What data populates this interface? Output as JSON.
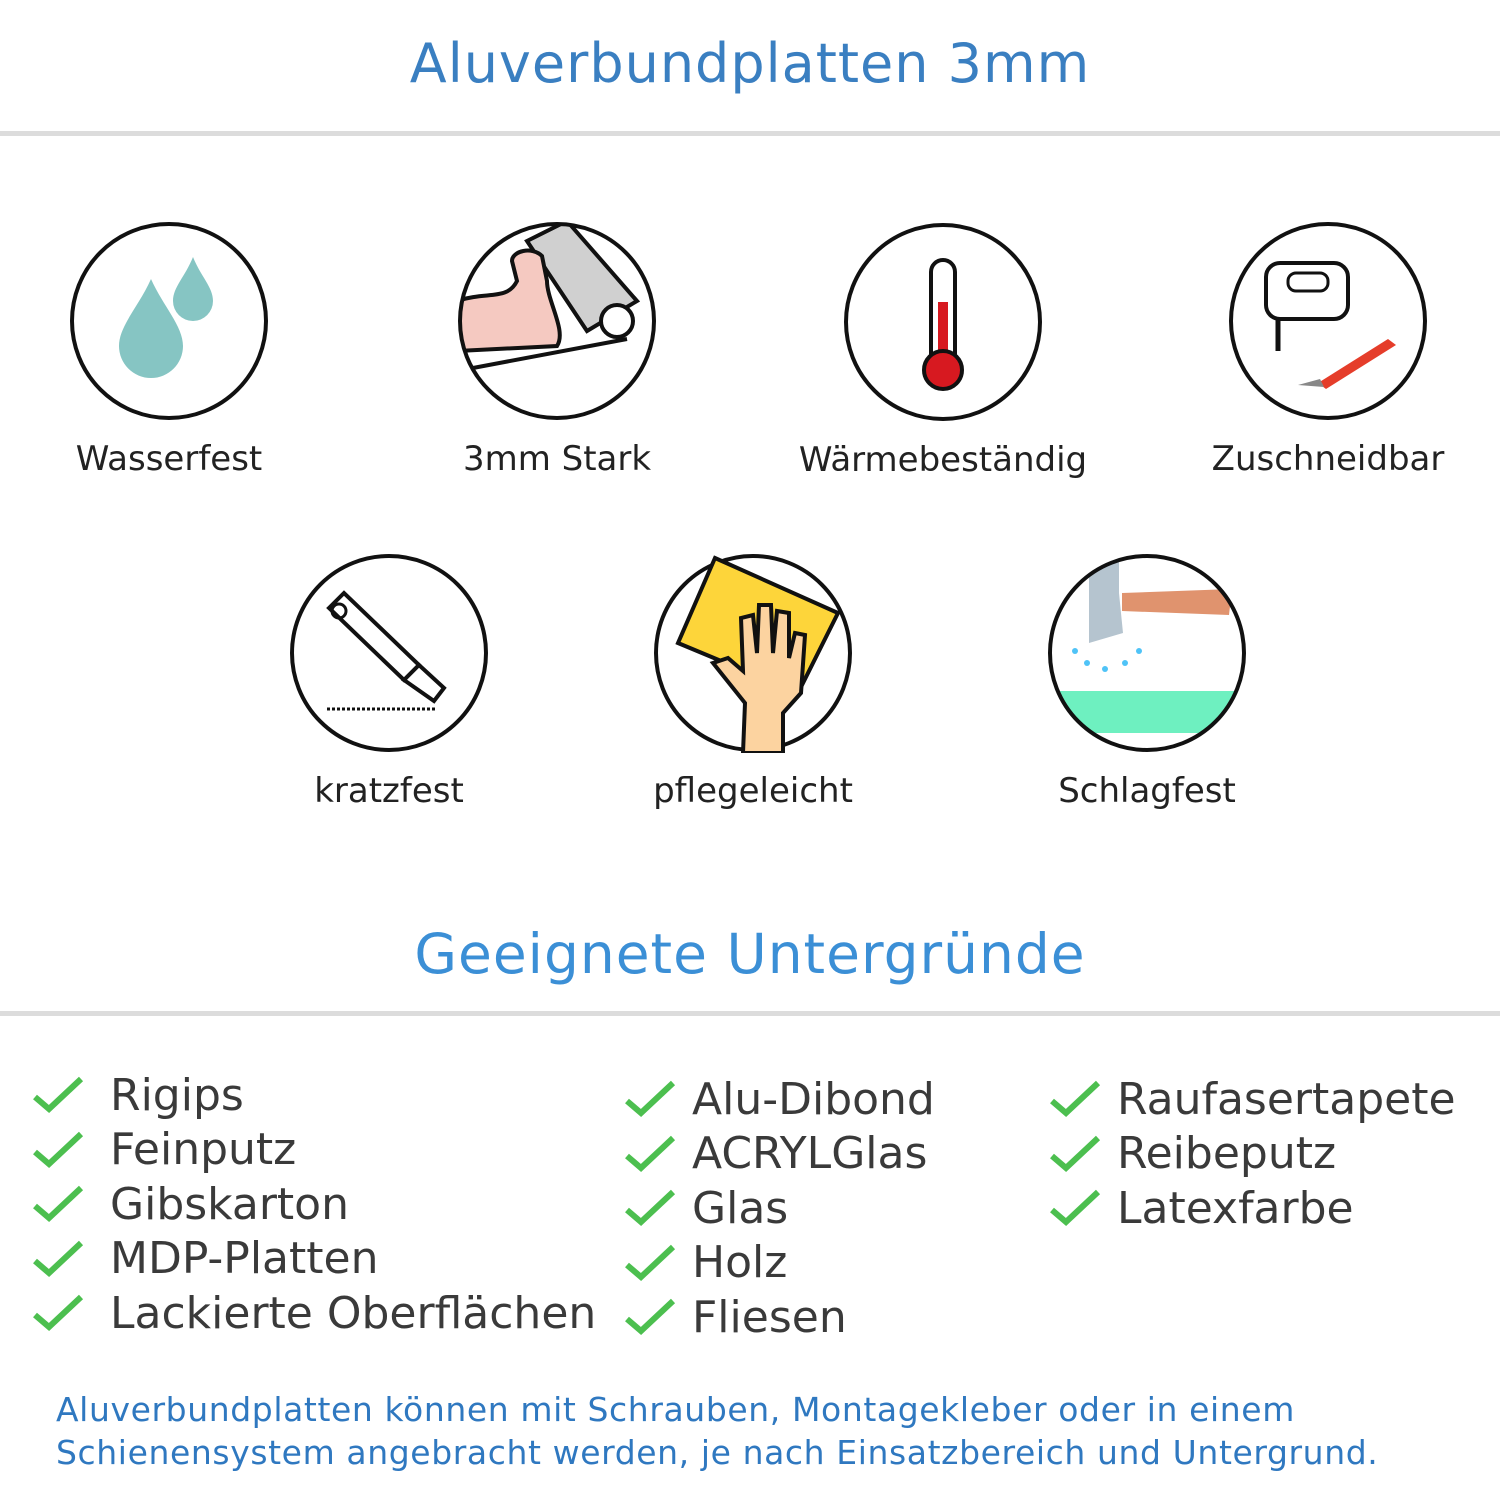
{
  "header": {
    "title": "Aluverbundplatten 3mm"
  },
  "features": [
    {
      "label": "Wasserfest",
      "icon": "water-drops-icon"
    },
    {
      "label": "3mm Stark",
      "icon": "strong-arm-icon"
    },
    {
      "label": "Wärmebeständig",
      "icon": "thermometer-icon"
    },
    {
      "label": "Zuschneidbar",
      "icon": "jigsaw-icon"
    },
    {
      "label": "kratzfest",
      "icon": "cutter-knife-icon"
    },
    {
      "label": "pflegeleicht",
      "icon": "cleaning-hand-icon"
    },
    {
      "label": "Schlagfest",
      "icon": "hammer-icon"
    }
  ],
  "surfaces": {
    "title": "Geeignete Untergründe",
    "columns": [
      [
        "Rigips",
        "Feinputz",
        "Gibskarton",
        "MDP-Platten",
        "Lackierte Oberflächen"
      ],
      [
        "Alu-Dibond",
        "ACRYLGlas",
        "Glas",
        "Holz",
        "Fliesen"
      ],
      [
        "Raufasertapete",
        "Reibeputz",
        "Latexfarbe"
      ]
    ],
    "check_color": "#4cbf4f"
  },
  "footer": {
    "line1": "Aluverbundplatten können mit Schrauben, Montagekleber oder in einem",
    "line2": "Schienensystem angebracht werden, je nach Einsatzbereich und Untergrund."
  }
}
